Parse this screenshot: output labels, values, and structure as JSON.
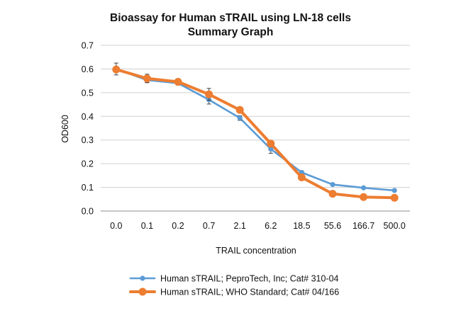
{
  "chart_data": {
    "type": "line",
    "title": [
      "Bioassay for Human sTRAIL using LN-18 cells",
      "Summary Graph"
    ],
    "xlabel": "TRAIL concentration",
    "ylabel": "OD600",
    "categories": [
      "0.0",
      "0.1",
      "0.2",
      "0.7",
      "2.1",
      "6.2",
      "18.5",
      "55.6",
      "166.7",
      "500.0"
    ],
    "ylim": [
      0,
      0.7
    ],
    "yticks": [
      "0.0",
      "0.1",
      "0.2",
      "0.3",
      "0.4",
      "0.5",
      "0.6",
      "0.7"
    ],
    "grid": true,
    "legend_position": "bottom",
    "series": [
      {
        "name": "Human sTRAIL; PeproTech, Inc; Cat# 310-04",
        "color": "#5b9bd5",
        "values": [
          0.6,
          0.553,
          0.54,
          0.47,
          0.393,
          0.262,
          0.163,
          0.112,
          0.098,
          0.087
        ],
        "error": [
          0.025,
          0.01,
          0.008,
          0.018,
          0.01,
          0.018,
          0.006,
          0.004,
          0.003,
          0.003
        ]
      },
      {
        "name": "Human sTRAIL; WHO Standard; Cat# 04/166",
        "color": "#ed7d31",
        "values": [
          0.598,
          0.56,
          0.546,
          0.493,
          0.427,
          0.285,
          0.142,
          0.073,
          0.059,
          0.056
        ],
        "error": [
          0.012,
          0.018,
          0.008,
          0.025,
          0.004,
          0.006,
          0.004,
          0.002,
          0.002,
          0.002
        ]
      }
    ]
  }
}
